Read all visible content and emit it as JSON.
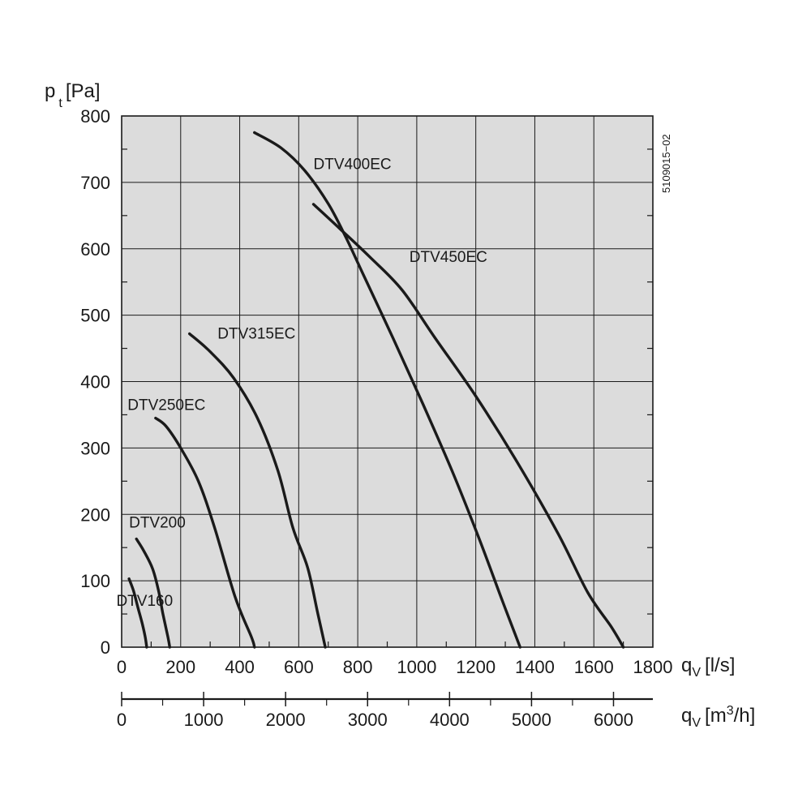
{
  "chart_data": {
    "type": "line",
    "title": "",
    "reference_code": "5109015−02",
    "y_axis": {
      "label_main": "p",
      "label_sub": "t",
      "label_unit": "[Pa]",
      "range": [
        0,
        800
      ],
      "ticks": [
        0,
        100,
        200,
        300,
        400,
        500,
        600,
        700,
        800
      ],
      "tick_labels": [
        "0",
        "100",
        "200",
        "300",
        "400",
        "500",
        "600",
        "700",
        "800"
      ],
      "minor_ticks": [
        50,
        150,
        250,
        350,
        450,
        550,
        650,
        750
      ]
    },
    "x_axis": {
      "label_main": "q",
      "label_sub": "V",
      "label_unit": "[l/s]",
      "range": [
        0,
        1800
      ],
      "ticks": [
        0,
        200,
        400,
        600,
        800,
        1000,
        1200,
        1400,
        1600,
        1800
      ],
      "tick_labels": [
        "0",
        "200",
        "400",
        "600",
        "800",
        "1000",
        "1200",
        "1400",
        "1600",
        "1800"
      ],
      "minor_ticks": [
        100,
        300,
        500,
        700,
        900,
        1100,
        1300,
        1500,
        1700
      ]
    },
    "x_axis_secondary": {
      "label_main": "q",
      "label_sub": "V",
      "label_unit_pre": "[m",
      "label_unit_sup": "3",
      "label_unit_post": "/h]",
      "range": [
        0,
        6480
      ],
      "ticks": [
        0,
        1000,
        2000,
        3000,
        4000,
        5000,
        6000
      ],
      "tick_labels": [
        "0",
        "1000",
        "2000",
        "3000",
        "4000",
        "5000",
        "6000"
      ],
      "minor_ticks": [
        500,
        1500,
        2500,
        3500,
        4500,
        5500
      ]
    },
    "grid": true,
    "plot_background": "#dcdcdc",
    "line_color": "#1a1a1a",
    "series": [
      {
        "name": "DTV160",
        "label_at": [
          -18,
          62
        ],
        "points": [
          [
            25,
            103
          ],
          [
            40,
            85
          ],
          [
            55,
            60
          ],
          [
            70,
            35
          ],
          [
            80,
            15
          ],
          [
            85,
            0
          ]
        ]
      },
      {
        "name": "DTV200",
        "label_at": [
          25,
          180
        ],
        "points": [
          [
            50,
            163
          ],
          [
            75,
            145
          ],
          [
            105,
            118
          ],
          [
            125,
            85
          ],
          [
            140,
            50
          ],
          [
            157,
            15
          ],
          [
            163,
            0
          ]
        ]
      },
      {
        "name": "DTV250EC",
        "label_at": [
          20,
          357
        ],
        "points": [
          [
            115,
            345
          ],
          [
            150,
            333
          ],
          [
            200,
            300
          ],
          [
            260,
            250
          ],
          [
            315,
            180
          ],
          [
            385,
            75
          ],
          [
            440,
            15
          ],
          [
            450,
            0
          ]
        ]
      },
      {
        "name": "DTV315EC",
        "label_at": [
          325,
          465
        ],
        "points": [
          [
            230,
            472
          ],
          [
            300,
            445
          ],
          [
            380,
            405
          ],
          [
            460,
            345
          ],
          [
            530,
            265
          ],
          [
            580,
            180
          ],
          [
            630,
            120
          ],
          [
            665,
            50
          ],
          [
            690,
            0
          ]
        ]
      },
      {
        "name": "DTV400EC",
        "label_at": [
          650,
          720
        ],
        "points": [
          [
            450,
            775
          ],
          [
            540,
            752
          ],
          [
            620,
            718
          ],
          [
            700,
            668
          ],
          [
            760,
            617
          ],
          [
            820,
            560
          ],
          [
            920,
            465
          ],
          [
            1020,
            367
          ],
          [
            1120,
            265
          ],
          [
            1210,
            165
          ],
          [
            1290,
            70
          ],
          [
            1350,
            0
          ]
        ]
      },
      {
        "name": "DTV450EC",
        "label_at": [
          975,
          580
        ],
        "points": [
          [
            650,
            667
          ],
          [
            740,
            630
          ],
          [
            840,
            588
          ],
          [
            950,
            538
          ],
          [
            1060,
            467
          ],
          [
            1200,
            378
          ],
          [
            1340,
            279
          ],
          [
            1480,
            170
          ],
          [
            1580,
            82
          ],
          [
            1660,
            30
          ],
          [
            1700,
            0
          ]
        ]
      }
    ]
  }
}
